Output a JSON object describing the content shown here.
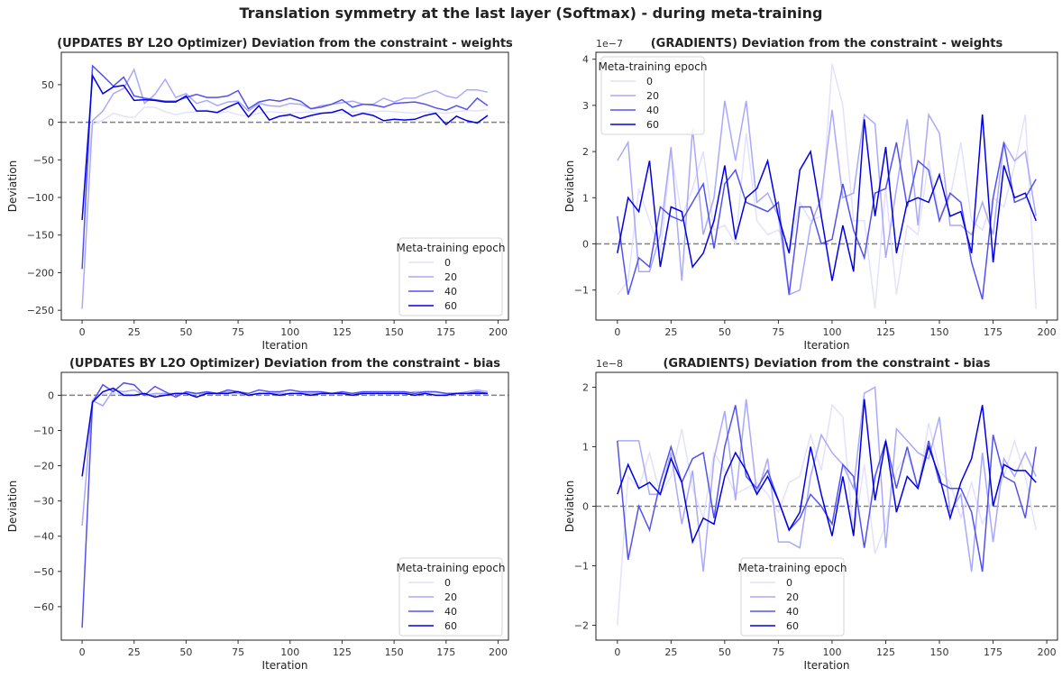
{
  "figure": {
    "title": "Translation symmetry at the last layer (Softmax) - during meta-training"
  },
  "legend_title": "Meta-training epoch",
  "series_colors": [
    "#e2e2fd",
    "#a9a9fc",
    "#5252f0",
    "#0000e6"
  ],
  "chart_data": [
    {
      "type": "line",
      "title": "(UPDATES BY L2O Optimizer) Deviation from the constraint - weights",
      "xlabel": "Iteration",
      "ylabel": "Deviation",
      "xlim": [
        -10,
        205
      ],
      "ylim": [
        -263,
        93
      ],
      "xticks": [
        0,
        25,
        50,
        75,
        100,
        125,
        150,
        175,
        200
      ],
      "yticks": [
        -250,
        -200,
        -150,
        -100,
        -50,
        0,
        50
      ],
      "offset_text": "",
      "hline": 0,
      "legend_loc": "lower-right",
      "x": [
        0,
        5,
        10,
        15,
        20,
        25,
        30,
        35,
        40,
        45,
        50,
        55,
        60,
        65,
        70,
        75,
        80,
        85,
        90,
        95,
        100,
        105,
        110,
        115,
        120,
        125,
        130,
        135,
        140,
        145,
        150,
        155,
        160,
        165,
        170,
        175,
        180,
        185,
        190,
        195
      ],
      "series": [
        {
          "name": "0",
          "values": [
            -128,
            -3,
            3,
            12,
            8,
            6,
            20,
            20,
            14,
            10,
            13,
            14,
            16,
            12,
            14,
            10,
            8,
            12,
            14,
            13,
            12,
            13,
            14,
            12,
            13,
            12,
            14,
            13,
            14,
            15,
            14,
            13,
            12,
            14,
            13,
            12,
            14,
            16,
            15,
            17
          ]
        },
        {
          "name": "20",
          "values": [
            -248,
            2,
            15,
            38,
            45,
            70,
            25,
            37,
            57,
            33,
            38,
            25,
            29,
            22,
            27,
            28,
            15,
            25,
            22,
            21,
            25,
            24,
            18,
            22,
            24,
            26,
            28,
            24,
            24,
            32,
            27,
            32,
            32,
            38,
            42,
            35,
            32,
            43,
            43,
            40
          ]
        },
        {
          "name": "40",
          "values": [
            -195,
            75,
            62,
            48,
            60,
            35,
            32,
            30,
            28,
            28,
            33,
            37,
            33,
            33,
            35,
            42,
            18,
            27,
            30,
            28,
            32,
            28,
            18,
            20,
            24,
            30,
            20,
            24,
            23,
            20,
            25,
            26,
            27,
            24,
            19,
            16,
            22,
            17,
            32,
            22
          ]
        },
        {
          "name": "60",
          "values": [
            -130,
            62,
            38,
            47,
            49,
            29,
            30,
            29,
            27,
            27,
            35,
            15,
            15,
            13,
            20,
            26,
            7,
            22,
            3,
            8,
            10,
            5,
            9,
            12,
            13,
            17,
            8,
            12,
            9,
            2,
            4,
            3,
            4,
            9,
            12,
            -3,
            8,
            2,
            -1,
            9
          ]
        }
      ]
    },
    {
      "type": "line",
      "title": "(GRADIENTS) Deviation from the constraint - weights",
      "xlabel": "Iteration",
      "ylabel": "Deviation",
      "xlim": [
        -10,
        205
      ],
      "ylim": [
        -1.65,
        4.15
      ],
      "xticks": [
        0,
        25,
        50,
        75,
        100,
        125,
        150,
        175,
        200
      ],
      "yticks": [
        -1,
        0,
        1,
        2,
        3,
        4
      ],
      "offset_text": "1e−7",
      "hline": 0,
      "legend_loc": "upper-left",
      "x": [
        0,
        5,
        10,
        15,
        20,
        25,
        30,
        35,
        40,
        45,
        50,
        55,
        60,
        65,
        70,
        75,
        80,
        85,
        90,
        95,
        100,
        105,
        110,
        115,
        120,
        125,
        130,
        135,
        140,
        145,
        150,
        155,
        160,
        165,
        170,
        175,
        180,
        185,
        190,
        195
      ],
      "series": [
        {
          "name": "0",
          "values": [
            -1.1,
            -0.8,
            1.2,
            0.5,
            -0.2,
            2.0,
            0.6,
            1.2,
            2.0,
            0.3,
            0.4,
            0.0,
            2.4,
            0.5,
            0.2,
            0.3,
            -0.2,
            0.9,
            0.5,
            0.6,
            3.9,
            3.0,
            0.5,
            0.5,
            -1.4,
            1.2,
            -1.1,
            0.4,
            0.2,
            1.8,
            0.6,
            1.0,
            2.2,
            0.5,
            0.3,
            1.0,
            0.8,
            1.7,
            2.8,
            -1.4
          ]
        },
        {
          "name": "20",
          "values": [
            1.8,
            2.2,
            -0.6,
            -0.6,
            0.2,
            2.1,
            -0.8,
            2.5,
            0.2,
            1.0,
            3.1,
            1.8,
            3.1,
            0.9,
            1.1,
            0.6,
            -1.1,
            -1.0,
            0.4,
            1.0,
            2.9,
            1.0,
            1.1,
            2.8,
            2.6,
            -0.3,
            1.2,
            2.7,
            0.4,
            2.8,
            2.4,
            0.4,
            0.4,
            0.2,
            0.9,
            0.2,
            2.2,
            1.8,
            2.0,
            0.6
          ]
        },
        {
          "name": "40",
          "values": [
            0.6,
            -1.1,
            -0.3,
            -0.5,
            0.8,
            0.6,
            0.5,
            0.9,
            1.3,
            -0.1,
            1.3,
            1.6,
            0.9,
            0.8,
            0.7,
            0.9,
            -1.1,
            0.8,
            0.8,
            0.0,
            0.1,
            1.3,
            0.3,
            -0.3,
            1.1,
            1.2,
            2.2,
            0.8,
            1.8,
            1.6,
            0.5,
            1.1,
            0.9,
            -0.4,
            -1.2,
            1.0,
            2.2,
            0.9,
            1.0,
            1.4
          ]
        },
        {
          "name": "60",
          "values": [
            -0.2,
            1.0,
            0.7,
            1.8,
            -0.5,
            0.8,
            0.7,
            -0.5,
            -0.2,
            0.5,
            1.7,
            0.1,
            1.0,
            1.2,
            1.8,
            0.6,
            -0.2,
            1.6,
            2.0,
            0.6,
            -0.8,
            0.4,
            -0.6,
            2.7,
            0.6,
            2.1,
            -0.2,
            0.9,
            1.0,
            0.9,
            1.5,
            0.6,
            0.7,
            -0.2,
            2.8,
            -0.4,
            1.7,
            1.0,
            1.1,
            0.5
          ]
        }
      ]
    },
    {
      "type": "line",
      "title": "(UPDATES BY L2O Optimizer) Deviation from the constraint - bias",
      "xlabel": "Iteration",
      "ylabel": "Deviation",
      "xlim": [
        -10,
        205
      ],
      "ylim": [
        -69.5,
        6.5
      ],
      "xticks": [
        0,
        25,
        50,
        75,
        100,
        125,
        150,
        175,
        200
      ],
      "yticks": [
        -60,
        -50,
        -40,
        -30,
        -20,
        -10,
        0
      ],
      "offset_text": "",
      "hline": 0,
      "legend_loc": "lower-right",
      "x": [
        0,
        5,
        10,
        15,
        20,
        25,
        30,
        35,
        40,
        45,
        50,
        55,
        60,
        65,
        70,
        75,
        80,
        85,
        90,
        95,
        100,
        105,
        110,
        115,
        120,
        125,
        130,
        135,
        140,
        145,
        150,
        155,
        160,
        165,
        170,
        175,
        180,
        185,
        190,
        195
      ],
      "series": [
        {
          "name": "0",
          "values": [
            -24,
            -1,
            0.5,
            0.5,
            0.5,
            0.2,
            0.3,
            0.2,
            0.4,
            0.5,
            0.3,
            0.4,
            0.4,
            0.5,
            0.4,
            0.5,
            0.3,
            0.5,
            0.4,
            0.5,
            0.6,
            0.5,
            0.4,
            0.6,
            0.5,
            0.5,
            0.6,
            0.5,
            0.6,
            0.5,
            0.6,
            0.5,
            0.5,
            0.6,
            0.6,
            0.5,
            0.6,
            0.6,
            0.5,
            0.6
          ]
        },
        {
          "name": "20",
          "values": [
            -37,
            -1.5,
            -3,
            1.5,
            1,
            1.5,
            0,
            0.5,
            0.5,
            0.5,
            0.5,
            0.5,
            0.5,
            0.5,
            1,
            0.5,
            0,
            0.5,
            0.5,
            0.5,
            0.5,
            0.5,
            0.5,
            0.5,
            0.5,
            0.5,
            0.5,
            0.5,
            0.5,
            0.5,
            0.5,
            0.5,
            1,
            1,
            1,
            0.5,
            0.5,
            1,
            1.5,
            1
          ]
        },
        {
          "name": "40",
          "values": [
            -66,
            -2,
            3,
            1,
            3.5,
            3,
            0,
            2.5,
            1,
            -0.5,
            1,
            0.5,
            1,
            0.5,
            1.5,
            1,
            0.5,
            1.5,
            1,
            1,
            1.5,
            1,
            1,
            1,
            0.5,
            1,
            0.5,
            1,
            1,
            1,
            1,
            1,
            0.5,
            1,
            1,
            0.5,
            0.5,
            0.5,
            1,
            0.5
          ]
        },
        {
          "name": "60",
          "values": [
            -23,
            -2,
            1,
            2,
            0,
            0,
            0.5,
            -0.5,
            0,
            0.5,
            0.5,
            -0.5,
            0.5,
            0.5,
            0.5,
            1,
            0,
            0.5,
            0.5,
            0,
            0.5,
            0.5,
            0,
            0.5,
            0.5,
            0.5,
            0,
            0.5,
            0.5,
            0.5,
            0.5,
            0.5,
            0,
            0.5,
            0,
            0,
            0.5,
            0.5,
            0.5,
            0.5
          ]
        }
      ]
    },
    {
      "type": "line",
      "title": "(GRADIENTS) Deviation from the constraint - bias",
      "xlabel": "Iteration",
      "ylabel": "Deviation",
      "xlim": [
        -10,
        205
      ],
      "ylim": [
        -2.25,
        2.25
      ],
      "xticks": [
        0,
        25,
        50,
        75,
        100,
        125,
        150,
        175,
        200
      ],
      "yticks": [
        -2,
        -1,
        0,
        1,
        2
      ],
      "offset_text": "1e−8",
      "hline": 0,
      "legend_loc": "lower-center",
      "x": [
        0,
        5,
        10,
        15,
        20,
        25,
        30,
        35,
        40,
        45,
        50,
        55,
        60,
        65,
        70,
        75,
        80,
        85,
        90,
        95,
        100,
        105,
        110,
        115,
        120,
        125,
        130,
        135,
        140,
        145,
        150,
        155,
        160,
        165,
        170,
        175,
        180,
        185,
        190,
        195
      ],
      "series": [
        {
          "name": "0",
          "values": [
            -2.0,
            0.5,
            0.3,
            0.9,
            0.2,
            0.5,
            1.3,
            0.3,
            -0.2,
            0.9,
            0.6,
            0.2,
            0.3,
            0.4,
            0.2,
            -0.1,
            0.4,
            0.5,
            1.2,
            0.6,
            1.7,
            1.5,
            -0.5,
            0.7,
            -0.8,
            -0.3,
            0.6,
            0.9,
            0.3,
            1.4,
            0.6,
            0.4,
            -0.2,
            0.4,
            -0.3,
            0.1,
            0.5,
            1.1,
            0.5,
            -0.4
          ]
        },
        {
          "name": "20",
          "values": [
            1.1,
            1.1,
            1.1,
            0.2,
            0.2,
            0.9,
            -0.3,
            0.6,
            -1.1,
            0.8,
            1.6,
            0.1,
            1.8,
            0.2,
            0.8,
            -0.6,
            -0.6,
            -0.7,
            0.5,
            1.2,
            0.9,
            0.7,
            0.3,
            1.9,
            2.0,
            -0.7,
            1.3,
            1.1,
            0.9,
            0.8,
            1.5,
            -0.1,
            0.2,
            -1.1,
            0.9,
            -0.6,
            0.8,
            0.5,
            0.9,
            0.5
          ]
        },
        {
          "name": "40",
          "values": [
            1.1,
            -0.9,
            0.0,
            -0.4,
            0.4,
            1.0,
            0.4,
            0.8,
            0.9,
            -0.2,
            1.0,
            1.7,
            0.5,
            0.3,
            0.6,
            0.1,
            -0.4,
            -0.2,
            0.2,
            0.0,
            -0.3,
            0.7,
            0.5,
            -0.7,
            0.5,
            1.1,
            0.3,
            1.0,
            0.3,
            1.1,
            0.4,
            0.3,
            0.3,
            -0.1,
            -1.1,
            1.2,
            0.5,
            0.4,
            -0.2,
            1.0
          ]
        },
        {
          "name": "60",
          "values": [
            0.2,
            0.7,
            0.3,
            0.4,
            0.2,
            0.8,
            0.4,
            -0.6,
            -0.2,
            -0.3,
            0.5,
            0.9,
            0.6,
            0.2,
            0.5,
            0.1,
            -0.4,
            -0.1,
            1.0,
            0.2,
            -0.5,
            0.5,
            -0.5,
            1.8,
            0.1,
            1.1,
            -0.1,
            0.5,
            0.3,
            1.0,
            0.5,
            -0.2,
            0.4,
            0.8,
            1.7,
            0.0,
            0.7,
            0.6,
            0.6,
            0.4
          ]
        }
      ]
    }
  ]
}
